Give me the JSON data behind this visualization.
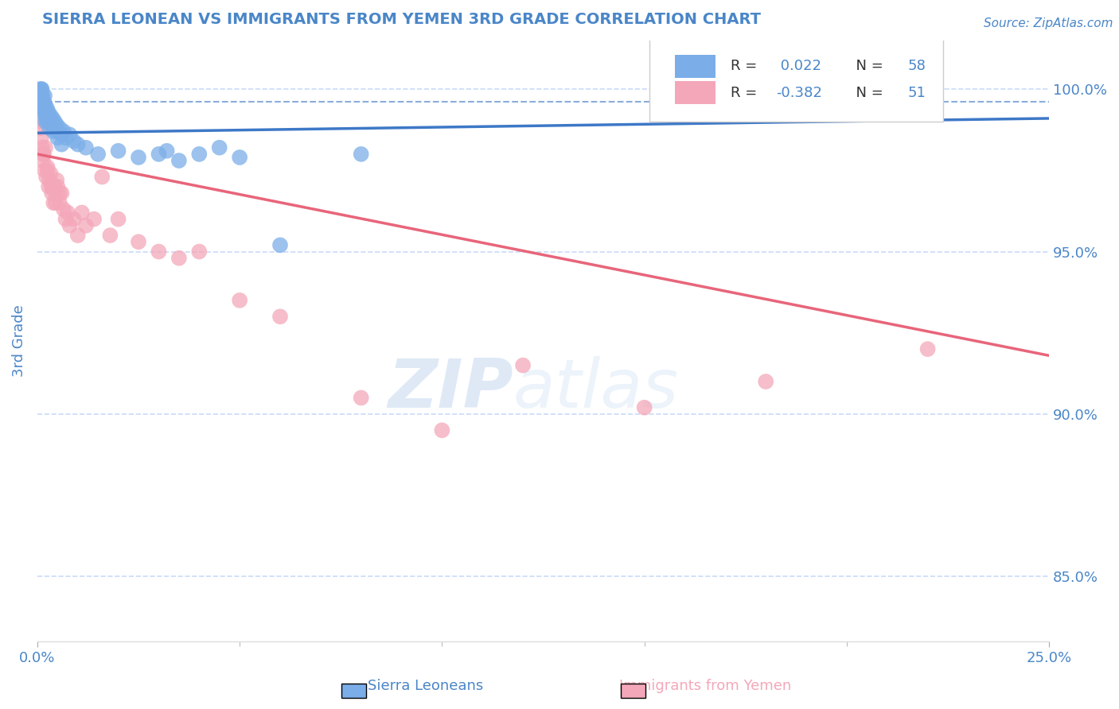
{
  "title": "SIERRA LEONEAN VS IMMIGRANTS FROM YEMEN 3RD GRADE CORRELATION CHART",
  "source_text": "Source: ZipAtlas.com",
  "ylabel": "3rd Grade",
  "ylabel_right_ticks": [
    85.0,
    90.0,
    95.0,
    100.0
  ],
  "xlim": [
    0.0,
    25.0
  ],
  "ylim": [
    83.0,
    101.5
  ],
  "legend_blue_R": 0.022,
  "legend_blue_N": 58,
  "legend_pink_R": -0.382,
  "legend_pink_N": 51,
  "blue_color": "#7baee8",
  "pink_color": "#f4a7b9",
  "blue_line_color": "#3d78c7",
  "pink_line_color": "#e8657a",
  "text_color": "#4a86c8",
  "legend_text_color": "#222222",
  "grid_color": "#c9daf8",
  "background_color": "#ffffff",
  "dashed_line_y": 99.6,
  "blue_scatter_x": [
    0.05,
    0.07,
    0.08,
    0.09,
    0.1,
    0.11,
    0.12,
    0.13,
    0.14,
    0.15,
    0.16,
    0.17,
    0.18,
    0.19,
    0.2,
    0.22,
    0.24,
    0.25,
    0.27,
    0.3,
    0.32,
    0.35,
    0.38,
    0.4,
    0.43,
    0.45,
    0.48,
    0.5,
    0.55,
    0.6,
    0.65,
    0.7,
    0.8,
    0.9,
    1.0,
    1.2,
    1.5,
    2.0,
    2.5,
    3.0,
    3.5,
    4.0,
    5.0,
    0.1,
    0.12,
    0.15,
    0.18,
    0.2,
    0.25,
    0.3,
    0.35,
    0.4,
    0.5,
    0.6,
    3.2,
    4.5,
    6.0,
    8.0
  ],
  "blue_scatter_y": [
    99.5,
    100.0,
    99.8,
    99.9,
    100.0,
    100.0,
    99.7,
    99.8,
    99.6,
    99.5,
    99.4,
    99.6,
    99.8,
    99.3,
    99.5,
    99.2,
    99.4,
    99.0,
    99.3,
    99.1,
    99.2,
    99.0,
    99.1,
    98.9,
    99.0,
    98.8,
    98.9,
    98.7,
    98.8,
    98.6,
    98.7,
    98.5,
    98.6,
    98.4,
    98.3,
    98.2,
    98.0,
    98.1,
    97.9,
    98.0,
    97.8,
    98.0,
    97.9,
    99.8,
    99.6,
    99.4,
    99.2,
    99.0,
    99.1,
    98.8,
    98.9,
    98.7,
    98.5,
    98.3,
    98.1,
    98.2,
    95.2,
    98.0
  ],
  "pink_scatter_x": [
    0.05,
    0.08,
    0.1,
    0.12,
    0.14,
    0.16,
    0.18,
    0.2,
    0.22,
    0.25,
    0.28,
    0.3,
    0.33,
    0.36,
    0.38,
    0.4,
    0.43,
    0.45,
    0.48,
    0.5,
    0.55,
    0.6,
    0.65,
    0.7,
    0.75,
    0.8,
    0.9,
    1.0,
    1.1,
    1.2,
    1.4,
    1.6,
    1.8,
    2.0,
    2.5,
    3.0,
    3.5,
    4.0,
    5.0,
    6.0,
    8.0,
    10.0,
    12.0,
    15.0,
    18.0,
    22.0,
    0.15,
    0.25,
    0.35,
    0.45,
    0.55
  ],
  "pink_scatter_y": [
    99.0,
    98.8,
    98.5,
    98.2,
    97.8,
    98.0,
    97.5,
    98.2,
    97.3,
    97.6,
    97.0,
    97.2,
    97.4,
    96.8,
    97.0,
    96.5,
    97.0,
    96.8,
    97.2,
    97.0,
    96.5,
    96.8,
    96.3,
    96.0,
    96.2,
    95.8,
    96.0,
    95.5,
    96.2,
    95.8,
    96.0,
    97.3,
    95.5,
    96.0,
    95.3,
    95.0,
    94.8,
    95.0,
    93.5,
    93.0,
    90.5,
    89.5,
    91.5,
    90.2,
    91.0,
    92.0,
    98.0,
    97.5,
    97.0,
    96.5,
    96.8
  ],
  "watermark_zip": "ZIP",
  "watermark_atlas": "atlas",
  "bottom_label_blue": "Sierra Leoneans",
  "bottom_label_pink": "Immigrants from Yemen"
}
